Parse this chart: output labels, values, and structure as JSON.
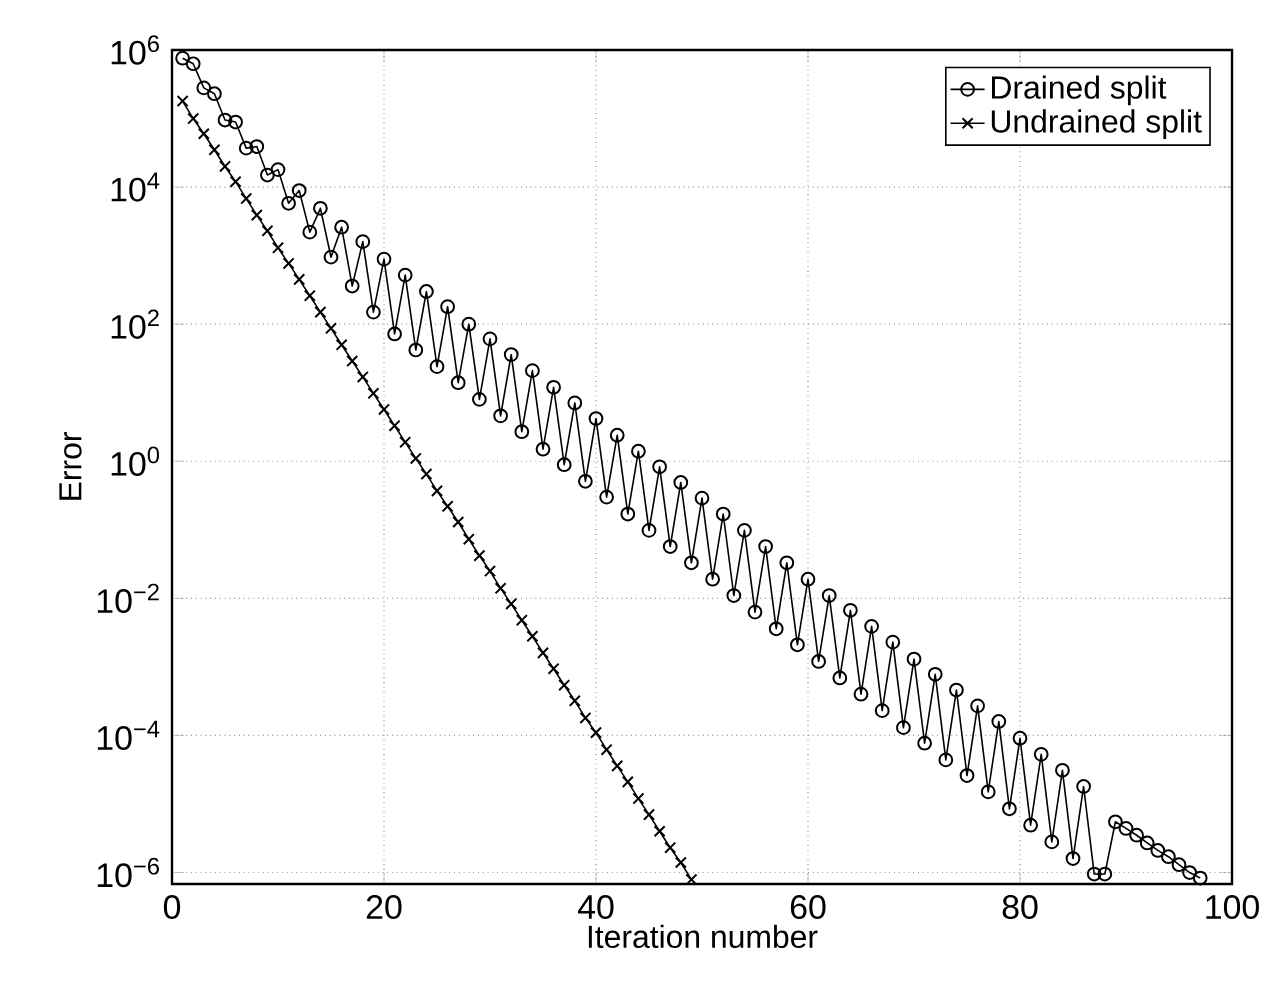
{
  "chart_data": {
    "type": "line",
    "xlabel": "Iteration number",
    "ylabel": "Error",
    "xlim": [
      0,
      100
    ],
    "xticks": [
      0,
      20,
      40,
      60,
      80,
      100
    ],
    "ylim": [
      6.8e-07,
      1000000
    ],
    "yticks": [
      {
        "value": 1e-06,
        "label": "10$^{−6}$"
      },
      {
        "value": 0.0001,
        "label": "10$^{−4}$"
      },
      {
        "value": 0.01,
        "label": "10$^{−2}$"
      },
      {
        "value": 1,
        "label": "10$^{0}$"
      },
      {
        "value": 100,
        "label": "10$^{2}$"
      },
      {
        "value": 10000,
        "label": "10$^{4}$"
      },
      {
        "value": 1000000,
        "label": "10$^{6}$"
      }
    ],
    "log": "y",
    "grid": true,
    "legend": "top right",
    "line_style": "solid",
    "series": [
      {
        "name": "Drained split",
        "color": "#000000",
        "marker": "circle",
        "x": [
          1,
          2,
          3,
          4,
          5,
          6,
          7,
          8,
          9,
          10,
          11,
          12,
          13,
          14,
          15,
          16,
          17,
          18,
          19,
          20,
          21,
          22,
          23,
          24,
          25,
          26,
          27,
          28,
          29,
          30,
          31,
          32,
          33,
          34,
          35,
          36,
          37,
          38,
          39,
          40,
          41,
          42,
          43,
          44,
          45,
          46,
          47,
          48,
          49,
          50,
          51,
          52,
          53,
          54,
          55,
          56,
          57,
          58,
          59,
          60,
          61,
          62,
          63,
          64,
          65,
          66,
          67,
          68,
          69,
          70,
          71,
          72,
          73,
          74,
          75,
          76,
          77,
          78,
          79,
          80,
          81,
          82,
          83,
          84,
          85,
          86,
          87,
          88,
          89,
          90,
          91,
          92,
          93,
          94,
          95,
          96,
          97
        ],
        "values": [
          760000.0,
          630000.0,
          280000.0,
          230000.0,
          95000.0,
          89000.0,
          37000.0,
          39000.0,
          15000.0,
          18000.0,
          5800.0,
          8900.0,
          2200.0,
          4900.0,
          950.0,
          2600.0,
          360.0,
          1600.0,
          150.0,
          890.0,
          72,
          520.0,
          42,
          300.0,
          24,
          180.0,
          14,
          100.0,
          8.0,
          61,
          4.6,
          36,
          2.7,
          21,
          1.5,
          12,
          0.89,
          7.1,
          0.51,
          4.2,
          0.3,
          2.4,
          0.17,
          1.4,
          0.098,
          0.83,
          0.057,
          0.49,
          0.033,
          0.29,
          0.019,
          0.17,
          0.011,
          0.098,
          0.0063,
          0.057,
          0.0036,
          0.033,
          0.0021,
          0.019,
          0.0012,
          0.011,
          0.00069,
          0.0067,
          0.0004,
          0.0039,
          0.00023,
          0.0023,
          0.00013,
          0.0013,
          7.7e-05,
          0.00078,
          4.4e-05,
          0.00046,
          2.6e-05,
          0.00027,
          1.5e-05,
          0.00016,
          8.5e-06,
          9.1e-05,
          4.9e-06,
          5.3e-05,
          2.8e-06,
          3.1e-05,
          1.6e-06,
          1.8e-05,
          9.5e-07,
          9.5e-07,
          5.5e-06,
          4.4e-06,
          3.5e-06,
          2.7e-06,
          2.1e-06,
          1.7e-06,
          1.3e-06,
          1e-06,
          8.3e-07
        ]
      },
      {
        "name": "Undrained split",
        "color": "#000000",
        "marker": "cross",
        "x": [
          1,
          2,
          3,
          4,
          5,
          6,
          7,
          8,
          9,
          10,
          11,
          12,
          13,
          14,
          15,
          16,
          17,
          18,
          19,
          20,
          21,
          22,
          23,
          24,
          25,
          26,
          27,
          28,
          29,
          30,
          31,
          32,
          33,
          34,
          35,
          36,
          37,
          38,
          39,
          40,
          41,
          42,
          43,
          44,
          45,
          46,
          47,
          48,
          49
        ],
        "values": [
          180000.0,
          100000.0,
          60000.0,
          35000.0,
          20000.0,
          12000.0,
          6800.0,
          3900.0,
          2300.0,
          1300.0,
          770.0,
          450.0,
          260.0,
          150.0,
          87,
          50,
          29,
          17,
          9.8,
          5.7,
          3.3,
          1.9,
          1.1,
          0.65,
          0.37,
          0.22,
          0.13,
          0.073,
          0.042,
          0.025,
          0.014,
          0.0083,
          0.0048,
          0.0028,
          0.0016,
          0.00094,
          0.00054,
          0.00032,
          0.00018,
          0.00011,
          6.2e-05,
          3.6e-05,
          2.1e-05,
          1.2e-05,
          7e-06,
          4e-06,
          2.3e-06,
          1.4e-06,
          7.9e-07
        ]
      }
    ]
  }
}
